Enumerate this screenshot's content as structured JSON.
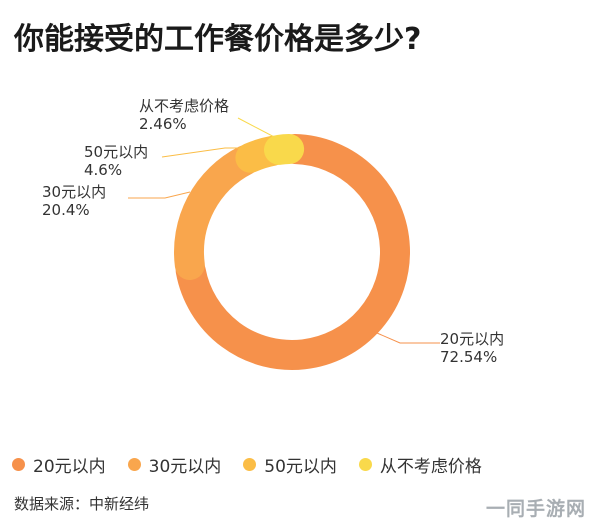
{
  "title": "你能接受的工作餐价格是多少?",
  "source": "数据来源：中新经纬",
  "watermark": "一同手游网",
  "chart_data": {
    "type": "pie",
    "style": "donut",
    "title": "你能接受的工作餐价格是多少?",
    "categories": [
      "20元以内",
      "30元以内",
      "50元以内",
      "从不考虑价格"
    ],
    "values": [
      72.54,
      20.4,
      4.6,
      2.46
    ],
    "value_labels": [
      "72.54%",
      "20.4%",
      "4.6%",
      "2.46%"
    ],
    "colors": [
      "#F6914B",
      "#F9A64D",
      "#FBBD46",
      "#F9D94B"
    ],
    "legend_position": "bottom"
  }
}
